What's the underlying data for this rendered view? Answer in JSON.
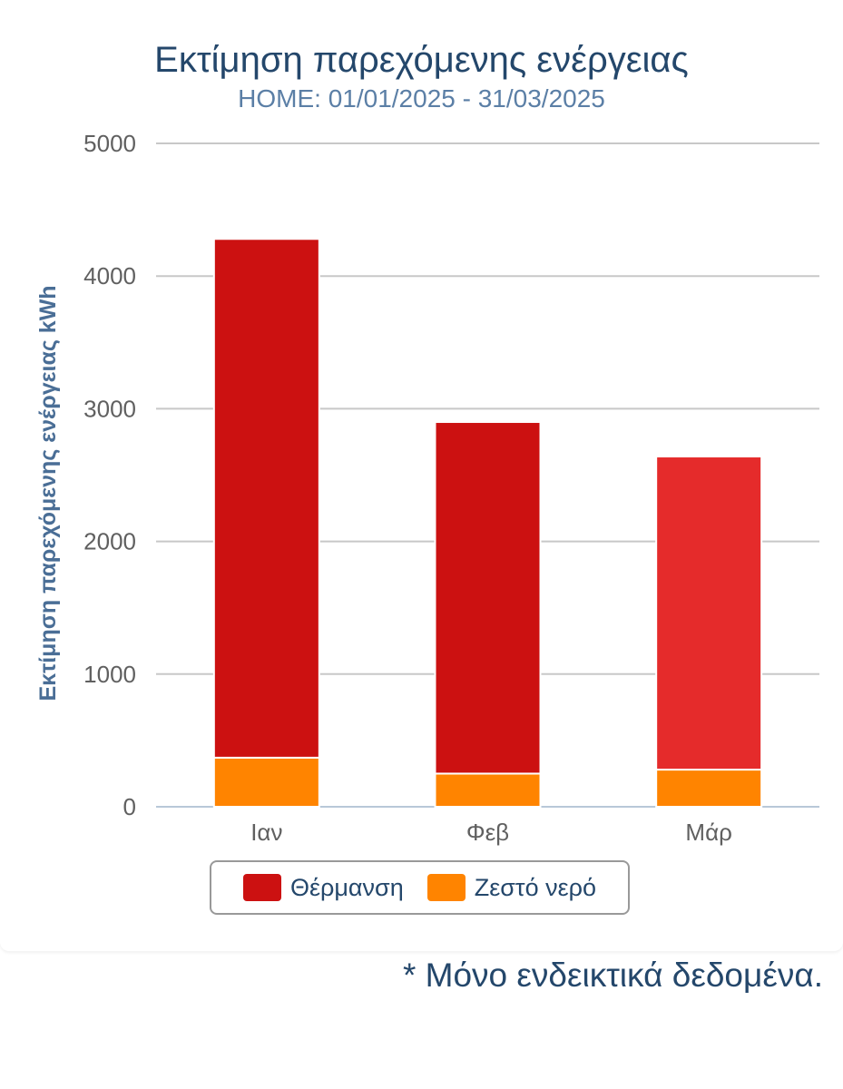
{
  "chart_data": {
    "type": "bar",
    "stacked": true,
    "title": "Εκτίμηση παρεχόμενης ενέργειας",
    "subtitle": "HOME: 01/01/2025 - 31/03/2025",
    "ylabel": "Εκτίμηση παρεχόμενης ενέργειας kWh",
    "xlabel": "",
    "categories": [
      "Ιαν",
      "Φεβ",
      "Μάρ"
    ],
    "ylim": [
      0,
      5000
    ],
    "yticks": [
      "0",
      "1000",
      "2000",
      "3000",
      "4000",
      "5000"
    ],
    "grid": true,
    "legend_position": "bottom",
    "series": [
      {
        "name": "Ζεστό νερό",
        "color": "#ff8400",
        "values": [
          370,
          250,
          280
        ]
      },
      {
        "name": "Θέρμανση",
        "color": "#cc1111",
        "point_colors": [
          "#cc1111",
          "#cc1111",
          "#e52b2b"
        ],
        "values": [
          3910,
          2650,
          2360
        ]
      }
    ],
    "legend_order": [
      "Θέρμανση",
      "Ζεστό νερό"
    ]
  },
  "footnote": "* Μόνο ενδεικτικά δεδομένα."
}
